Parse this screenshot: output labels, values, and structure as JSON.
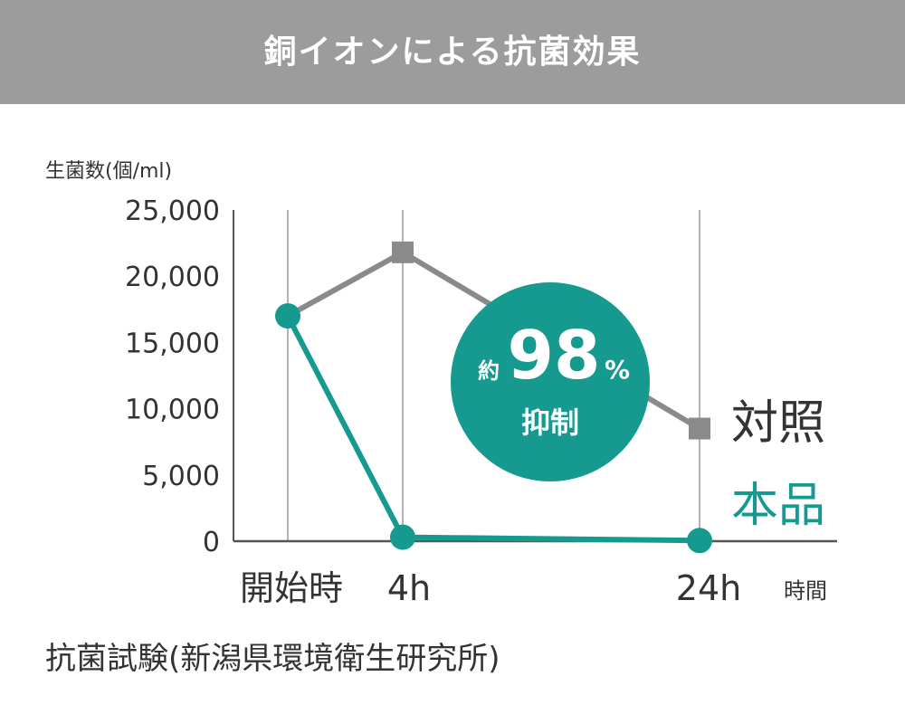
{
  "header": {
    "title": "銅イオンによる抗菌効果"
  },
  "colors": {
    "header_bg": "#9c9c9c",
    "control": "#8a8a8a",
    "product": "#16998f",
    "text": "#333333",
    "grid": "#9a9a9a",
    "badge": "#16998f"
  },
  "chart_data": {
    "type": "line",
    "ylabel": "生菌数(個/ml)",
    "xlabel": "時間",
    "categories": [
      "開始時",
      "4h",
      "24h"
    ],
    "y_ticks": [
      "0",
      "5,000",
      "10,000",
      "15,000",
      "20,000",
      "25,000"
    ],
    "ylim": [
      0,
      25000
    ],
    "grid": true,
    "legend_placement": "right",
    "series": [
      {
        "name": "対照",
        "marker": "square",
        "color": "#8a8a8a",
        "values": [
          17000,
          21800,
          8500
        ]
      },
      {
        "name": "本品",
        "marker": "circle",
        "color": "#16998f",
        "values": [
          17000,
          300,
          50
        ]
      }
    ],
    "annotation": {
      "prefix": "約",
      "value": "98",
      "unit": "%",
      "text": "抑制"
    }
  },
  "footer": {
    "source": "抗菌試験(新潟県環境衛生研究所)"
  }
}
